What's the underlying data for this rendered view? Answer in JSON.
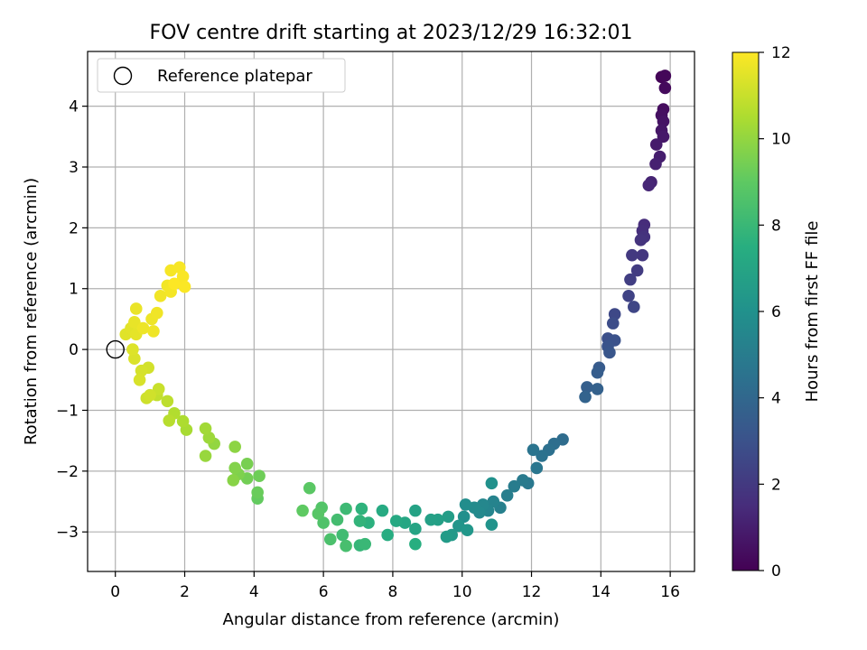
{
  "chart_data": {
    "type": "scatter",
    "title": "FOV centre drift starting at 2023/12/29 16:32:01",
    "xlabel": "Angular distance from reference (arcmin)",
    "ylabel": "Rotation from reference (arcmin)",
    "xlim": [
      -0.8,
      16.7
    ],
    "ylim": [
      -3.65,
      4.9
    ],
    "x_ticks": [
      0,
      2,
      4,
      6,
      8,
      10,
      12,
      14,
      16
    ],
    "y_ticks": [
      -3,
      -2,
      -1,
      0,
      1,
      2,
      3,
      4
    ],
    "grid": true,
    "legend": {
      "position": "top-left",
      "entries": [
        "Reference platepar"
      ]
    },
    "reference_point": {
      "x": 0,
      "y": 0
    },
    "colorbar": {
      "label": "Hours from first FF file",
      "range": [
        0,
        12
      ],
      "ticks": [
        0,
        2,
        4,
        6,
        8,
        10,
        12
      ],
      "colormap": "viridis"
    },
    "series": [
      {
        "points": [
          [
            15.75,
            4.48,
            0.1
          ],
          [
            15.85,
            4.5,
            0.2
          ],
          [
            15.85,
            4.3,
            0.3
          ],
          [
            15.8,
            3.95,
            0.4
          ],
          [
            15.75,
            3.85,
            0.5
          ],
          [
            15.8,
            3.75,
            0.6
          ],
          [
            15.75,
            3.6,
            0.7
          ],
          [
            15.8,
            3.5,
            0.8
          ],
          [
            15.6,
            3.37,
            0.9
          ],
          [
            15.7,
            3.17,
            1.0
          ],
          [
            15.58,
            3.05,
            1.1
          ],
          [
            15.45,
            2.75,
            1.2
          ],
          [
            15.38,
            2.7,
            1.3
          ],
          [
            15.25,
            2.05,
            1.5
          ],
          [
            15.2,
            1.95,
            1.6
          ],
          [
            15.25,
            1.85,
            1.7
          ],
          [
            15.15,
            1.8,
            1.8
          ],
          [
            15.2,
            1.55,
            1.9
          ],
          [
            14.9,
            1.55,
            2.0
          ],
          [
            15.05,
            1.3,
            2.1
          ],
          [
            14.85,
            1.15,
            2.2
          ],
          [
            14.8,
            0.88,
            2.4
          ],
          [
            14.95,
            0.7,
            2.5
          ],
          [
            14.4,
            0.58,
            2.6
          ],
          [
            14.35,
            0.43,
            2.8
          ],
          [
            14.2,
            0.18,
            2.9
          ],
          [
            14.4,
            0.15,
            3.0
          ],
          [
            14.2,
            0.05,
            3.1
          ],
          [
            14.25,
            -0.05,
            3.2
          ],
          [
            13.95,
            -0.3,
            3.4
          ],
          [
            13.9,
            -0.38,
            3.5
          ],
          [
            13.6,
            -0.62,
            3.6
          ],
          [
            13.9,
            -0.65,
            3.7
          ],
          [
            13.55,
            -0.78,
            3.8
          ],
          [
            12.9,
            -1.48,
            4.2
          ],
          [
            12.65,
            -1.55,
            4.3
          ],
          [
            12.5,
            -1.65,
            4.4
          ],
          [
            12.3,
            -1.75,
            4.5
          ],
          [
            12.05,
            -1.65,
            4.6
          ],
          [
            12.15,
            -1.95,
            4.7
          ],
          [
            11.9,
            -2.2,
            4.8
          ],
          [
            11.75,
            -2.15,
            4.9
          ],
          [
            11.5,
            -2.25,
            5.0
          ],
          [
            11.3,
            -2.4,
            5.1
          ],
          [
            11.1,
            -2.6,
            5.2
          ],
          [
            10.9,
            -2.5,
            5.3
          ],
          [
            10.75,
            -2.65,
            5.4
          ],
          [
            10.6,
            -2.55,
            5.5
          ],
          [
            10.5,
            -2.68,
            5.6
          ],
          [
            10.35,
            -2.6,
            5.7
          ],
          [
            10.1,
            -2.55,
            5.8
          ],
          [
            10.05,
            -2.75,
            5.9
          ],
          [
            10.85,
            -2.2,
            6.0
          ],
          [
            10.85,
            -2.88,
            6.1
          ],
          [
            9.9,
            -2.9,
            6.2
          ],
          [
            10.15,
            -2.97,
            6.3
          ],
          [
            9.7,
            -3.05,
            6.4
          ],
          [
            9.55,
            -3.08,
            6.5
          ],
          [
            9.6,
            -2.75,
            6.6
          ],
          [
            9.3,
            -2.8,
            6.7
          ],
          [
            9.1,
            -2.8,
            6.8
          ],
          [
            8.65,
            -2.65,
            6.9
          ],
          [
            8.65,
            -2.95,
            7.0
          ],
          [
            8.35,
            -2.85,
            7.1
          ],
          [
            8.1,
            -2.82,
            7.2
          ],
          [
            7.7,
            -2.65,
            7.3
          ],
          [
            7.85,
            -3.05,
            7.4
          ],
          [
            8.65,
            -3.2,
            7.5
          ],
          [
            7.3,
            -2.85,
            7.6
          ],
          [
            7.1,
            -2.62,
            7.7
          ],
          [
            7.05,
            -2.82,
            7.8
          ],
          [
            7.05,
            -3.22,
            7.9
          ],
          [
            7.2,
            -3.2,
            8.0
          ],
          [
            6.65,
            -2.62,
            8.1
          ],
          [
            6.55,
            -3.05,
            8.2
          ],
          [
            6.4,
            -2.8,
            8.3
          ],
          [
            6.65,
            -3.23,
            8.4
          ],
          [
            6.2,
            -3.12,
            8.5
          ],
          [
            6.0,
            -2.85,
            8.6
          ],
          [
            5.95,
            -2.6,
            8.7
          ],
          [
            5.85,
            -2.7,
            8.8
          ],
          [
            5.6,
            -2.28,
            8.9
          ],
          [
            5.4,
            -2.65,
            9.0
          ],
          [
            4.1,
            -2.45,
            9.1
          ],
          [
            4.1,
            -2.35,
            9.2
          ],
          [
            4.15,
            -2.08,
            9.3
          ],
          [
            3.8,
            -2.12,
            9.4
          ],
          [
            3.8,
            -1.88,
            9.5
          ],
          [
            3.55,
            -2.05,
            9.6
          ],
          [
            3.45,
            -1.95,
            9.7
          ],
          [
            3.4,
            -2.15,
            9.8
          ],
          [
            3.45,
            -1.6,
            9.9
          ],
          [
            2.85,
            -1.55,
            10.0
          ],
          [
            2.6,
            -1.75,
            10.1
          ],
          [
            2.7,
            -1.45,
            10.2
          ],
          [
            2.6,
            -1.3,
            10.3
          ],
          [
            2.05,
            -1.32,
            10.4
          ],
          [
            1.95,
            -1.18,
            10.5
          ],
          [
            1.7,
            -1.05,
            10.6
          ],
          [
            1.55,
            -1.17,
            10.7
          ],
          [
            1.5,
            -0.85,
            10.8
          ],
          [
            1.2,
            -0.75,
            10.9
          ],
          [
            1.25,
            -0.65,
            11.0
          ],
          [
            0.9,
            -0.8,
            11.1
          ],
          [
            1.0,
            -0.75,
            11.15
          ],
          [
            0.95,
            -0.3,
            11.2
          ],
          [
            0.75,
            -0.35,
            11.25
          ],
          [
            0.7,
            -0.5,
            11.3
          ],
          [
            0.55,
            -0.15,
            11.35
          ],
          [
            0.5,
            0.0,
            11.4
          ],
          [
            0.3,
            0.25,
            11.45
          ],
          [
            0.45,
            0.35,
            11.5
          ],
          [
            0.6,
            0.25,
            11.55
          ],
          [
            0.55,
            0.45,
            11.6
          ],
          [
            0.6,
            0.67,
            11.65
          ],
          [
            0.8,
            0.35,
            11.7
          ],
          [
            1.05,
            0.5,
            11.72
          ],
          [
            1.1,
            0.3,
            11.74
          ],
          [
            1.2,
            0.6,
            11.76
          ],
          [
            1.3,
            0.88,
            11.78
          ],
          [
            1.5,
            1.05,
            11.8
          ],
          [
            1.6,
            0.95,
            11.83
          ],
          [
            1.6,
            1.3,
            11.86
          ],
          [
            1.85,
            1.35,
            11.88
          ],
          [
            1.9,
            1.1,
            11.9
          ],
          [
            1.95,
            1.2,
            11.92
          ],
          [
            2.0,
            1.03,
            11.95
          ],
          [
            1.7,
            1.08,
            11.98
          ]
        ]
      }
    ]
  }
}
